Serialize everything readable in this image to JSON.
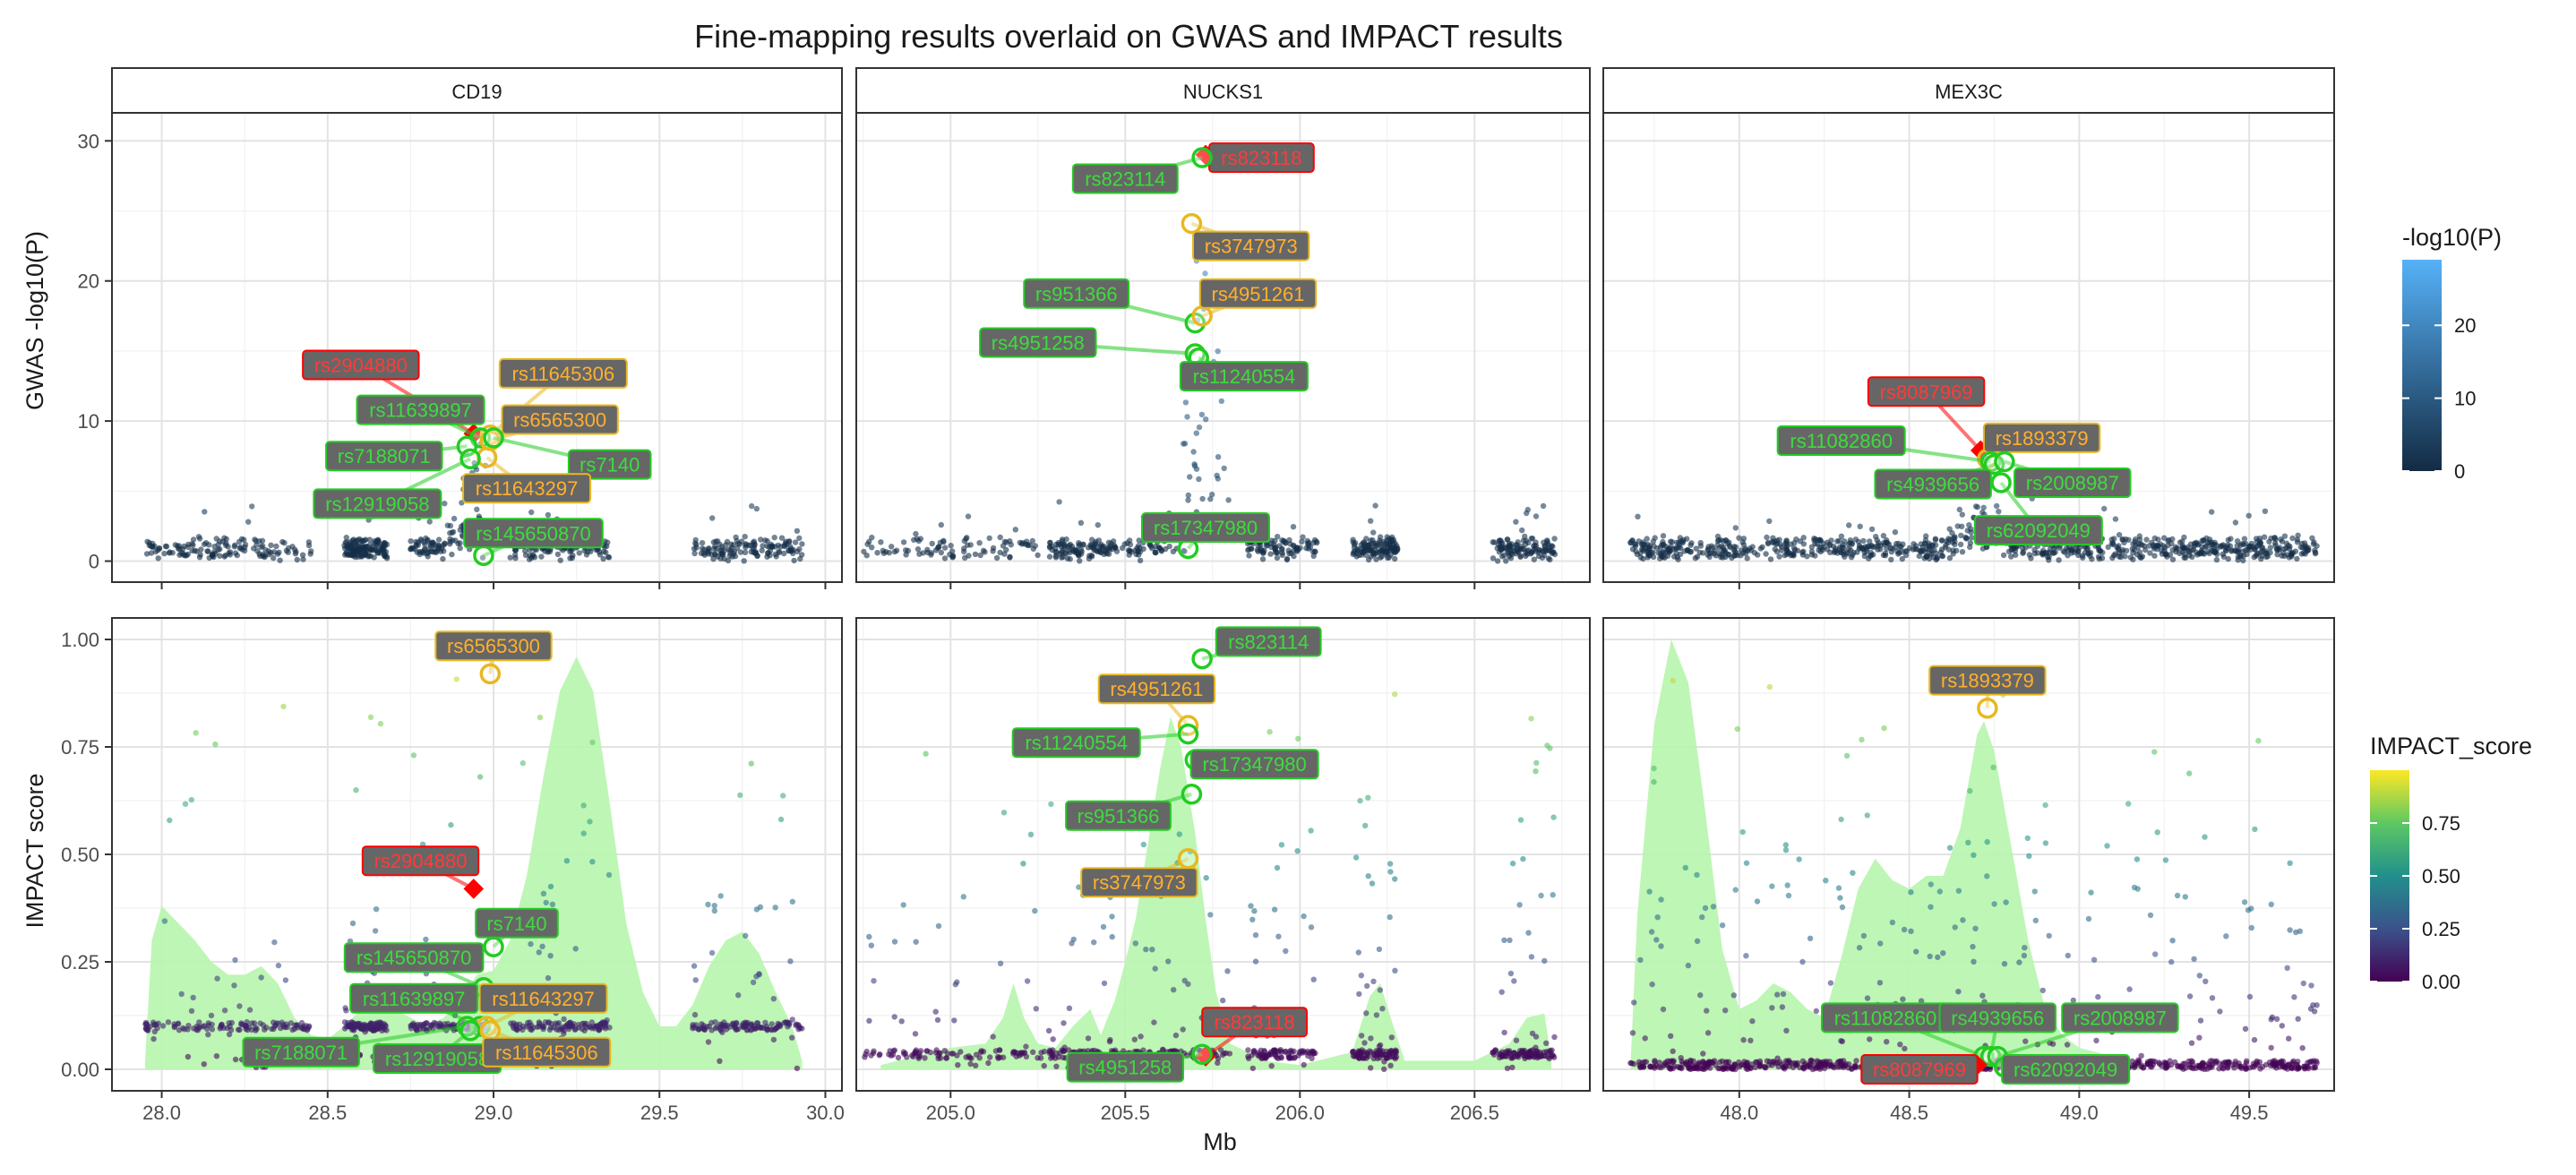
{
  "chart_data": {
    "type": "scatter",
    "title": "Fine-mapping results overlaid on GWAS and IMPACT results",
    "xlabel": "Mb",
    "rows": [
      {
        "key": "gwas",
        "ylabel": "GWAS -log10(P)",
        "ylim": [
          -1.5,
          32
        ],
        "ticks": [
          0,
          10,
          20,
          30
        ],
        "tick_labels": [
          "0",
          "10",
          "20",
          "30"
        ]
      },
      {
        "key": "impact",
        "ylabel": "IMPACT score",
        "ylim": [
          -0.05,
          1.05
        ],
        "ticks": [
          0,
          0.25,
          0.5,
          0.75,
          1.0
        ],
        "tick_labels": [
          "0.00",
          "0.25",
          "0.50",
          "0.75",
          "1.00"
        ]
      }
    ],
    "legends": [
      {
        "title": "-log10(P)",
        "min": 0,
        "max": 29,
        "ticks": [
          0,
          10,
          20
        ],
        "tick_labels": [
          "0",
          "10",
          "20"
        ],
        "colors": [
          "#132B43",
          "#56B1F7"
        ]
      },
      {
        "title": "IMPACT_score",
        "min": 0,
        "max": 1,
        "ticks": [
          0,
          0.25,
          0.5,
          0.75
        ],
        "tick_labels": [
          "0.00",
          "0.25",
          "0.50",
          "0.75"
        ],
        "colors": [
          "#440154",
          "#3B528B",
          "#21908C",
          "#5DC863",
          "#FDE725"
        ]
      }
    ],
    "colors": {
      "lead": "#ff0000",
      "credible_ring": "#22cc22",
      "alt_ring": "#e8b820",
      "density": "#b7f5ad",
      "label_fill": "#666666"
    },
    "genes": [
      {
        "name": "CD19",
        "xlim": [
          27.85,
          30.05
        ],
        "ticks": [
          28.0,
          28.5,
          29.0,
          29.5,
          30.0
        ],
        "tick_labels": [
          "28.0",
          "28.5",
          "29.0",
          "29.5",
          "30.0"
        ],
        "density": [
          [
            27.95,
            0.02
          ],
          [
            27.97,
            0.3
          ],
          [
            28.0,
            0.38
          ],
          [
            28.05,
            0.34
          ],
          [
            28.1,
            0.3
          ],
          [
            28.15,
            0.25
          ],
          [
            28.2,
            0.22
          ],
          [
            28.25,
            0.22
          ],
          [
            28.3,
            0.24
          ],
          [
            28.35,
            0.2
          ],
          [
            28.4,
            0.12
          ],
          [
            28.45,
            0.08
          ],
          [
            28.5,
            0.07
          ],
          [
            28.55,
            0.1
          ],
          [
            28.6,
            0.14
          ],
          [
            28.65,
            0.15
          ],
          [
            28.7,
            0.14
          ],
          [
            28.75,
            0.12
          ],
          [
            28.8,
            0.1
          ],
          [
            28.85,
            0.12
          ],
          [
            28.9,
            0.16
          ],
          [
            28.95,
            0.22
          ],
          [
            29.0,
            0.23
          ],
          [
            29.05,
            0.3
          ],
          [
            29.1,
            0.45
          ],
          [
            29.15,
            0.68
          ],
          [
            29.2,
            0.88
          ],
          [
            29.25,
            0.96
          ],
          [
            29.3,
            0.88
          ],
          [
            29.35,
            0.62
          ],
          [
            29.4,
            0.34
          ],
          [
            29.45,
            0.18
          ],
          [
            29.5,
            0.1
          ],
          [
            29.55,
            0.1
          ],
          [
            29.6,
            0.15
          ],
          [
            29.65,
            0.24
          ],
          [
            29.7,
            0.3
          ],
          [
            29.75,
            0.32
          ],
          [
            29.8,
            0.27
          ],
          [
            29.85,
            0.18
          ],
          [
            29.9,
            0.1
          ],
          [
            29.93,
            0.02
          ]
        ],
        "clusters": [
          [
            27.95,
            28.45
          ],
          [
            28.55,
            28.68
          ],
          [
            28.75,
            28.98
          ],
          [
            29.05,
            29.35
          ],
          [
            29.6,
            29.93
          ]
        ],
        "gwas_labels": [
          {
            "label": "rs2904880",
            "x": 28.94,
            "y": 9.1,
            "lx": 28.6,
            "ly": 14.0,
            "kind": "lead"
          },
          {
            "label": "rs11645306",
            "x": 28.99,
            "y": 9.0,
            "lx": 29.21,
            "ly": 13.4,
            "kind": "alt"
          },
          {
            "label": "rs11639897",
            "x": 28.96,
            "y": 8.8,
            "lx": 28.78,
            "ly": 10.8,
            "kind": "cs"
          },
          {
            "label": "rs6565300",
            "x": 28.99,
            "y": 8.6,
            "lx": 29.2,
            "ly": 10.1,
            "kind": "alt"
          },
          {
            "label": "rs7188071",
            "x": 28.92,
            "y": 8.2,
            "lx": 28.67,
            "ly": 7.5,
            "kind": "cs"
          },
          {
            "label": "rs7140",
            "x": 29.0,
            "y": 8.8,
            "lx": 29.35,
            "ly": 6.9,
            "kind": "cs"
          },
          {
            "label": "rs11643297",
            "x": 28.98,
            "y": 7.4,
            "lx": 29.1,
            "ly": 5.2,
            "kind": "alt"
          },
          {
            "label": "rs12919058",
            "x": 28.93,
            "y": 7.3,
            "lx": 28.65,
            "ly": 4.1,
            "kind": "cs"
          },
          {
            "label": "rs145650870",
            "x": 28.97,
            "y": 0.4,
            "lx": 29.12,
            "ly": 2.0,
            "kind": "cs"
          }
        ],
        "impact_labels": [
          {
            "label": "rs6565300",
            "x": 28.99,
            "y": 0.92,
            "lx": 29.0,
            "ly": 0.985,
            "kind": "alt"
          },
          {
            "label": "rs2904880",
            "x": 28.94,
            "y": 0.42,
            "lx": 28.78,
            "ly": 0.485,
            "kind": "lead"
          },
          {
            "label": "rs7140",
            "x": 29.0,
            "y": 0.285,
            "lx": 29.07,
            "ly": 0.34,
            "kind": "cs"
          },
          {
            "label": "rs145650870",
            "x": 28.97,
            "y": 0.19,
            "lx": 28.76,
            "ly": 0.26,
            "kind": "cs"
          },
          {
            "label": "rs11639897",
            "x": 28.96,
            "y": 0.1,
            "lx": 28.76,
            "ly": 0.165,
            "kind": "cs"
          },
          {
            "label": "rs11643297",
            "x": 28.98,
            "y": 0.1,
            "lx": 29.15,
            "ly": 0.165,
            "kind": "alt"
          },
          {
            "label": "rs7188071",
            "x": 28.92,
            "y": 0.1,
            "lx": 28.42,
            "ly": 0.04,
            "kind": "cs"
          },
          {
            "label": "rs12919058",
            "x": 28.93,
            "y": 0.09,
            "lx": 28.83,
            "ly": 0.025,
            "kind": "cs"
          },
          {
            "label": "rs11645306",
            "x": 28.99,
            "y": 0.09,
            "lx": 29.16,
            "ly": 0.04,
            "kind": "alt"
          }
        ]
      },
      {
        "name": "NUCKS1",
        "xlim": [
          204.73,
          206.83
        ],
        "ticks": [
          205.0,
          205.5,
          206.0,
          206.5
        ],
        "tick_labels": [
          "205.0",
          "205.5",
          "206.0",
          "206.5"
        ],
        "density": [
          [
            204.8,
            0.01
          ],
          [
            204.9,
            0.03
          ],
          [
            205.0,
            0.05
          ],
          [
            205.1,
            0.06
          ],
          [
            205.15,
            0.12
          ],
          [
            205.18,
            0.2
          ],
          [
            205.21,
            0.12
          ],
          [
            205.25,
            0.06
          ],
          [
            205.3,
            0.05
          ],
          [
            205.35,
            0.1
          ],
          [
            205.4,
            0.14
          ],
          [
            205.43,
            0.08
          ],
          [
            205.47,
            0.16
          ],
          [
            205.5,
            0.25
          ],
          [
            205.53,
            0.35
          ],
          [
            205.56,
            0.5
          ],
          [
            205.6,
            0.7
          ],
          [
            205.63,
            0.82
          ],
          [
            205.66,
            0.75
          ],
          [
            205.7,
            0.55
          ],
          [
            205.73,
            0.35
          ],
          [
            205.76,
            0.18
          ],
          [
            205.8,
            0.06
          ],
          [
            205.9,
            0.02
          ],
          [
            206.0,
            0.01
          ],
          [
            206.15,
            0.04
          ],
          [
            206.2,
            0.17
          ],
          [
            206.23,
            0.2
          ],
          [
            206.26,
            0.12
          ],
          [
            206.3,
            0.02
          ],
          [
            206.5,
            0.02
          ],
          [
            206.6,
            0.06
          ],
          [
            206.65,
            0.12
          ],
          [
            206.7,
            0.13
          ],
          [
            206.72,
            0.02
          ]
        ],
        "clusters": [
          [
            204.75,
            205.28
          ],
          [
            205.28,
            205.48
          ],
          [
            205.48,
            205.8
          ],
          [
            205.85,
            206.05
          ],
          [
            206.15,
            206.28
          ],
          [
            206.55,
            206.73
          ]
        ],
        "gwas_labels": [
          {
            "label": "rs823118",
            "x": 205.73,
            "y": 29.0,
            "lx": 205.89,
            "ly": 28.8,
            "kind": "lead"
          },
          {
            "label": "rs823114",
            "x": 205.72,
            "y": 28.8,
            "lx": 205.5,
            "ly": 27.3,
            "kind": "cs"
          },
          {
            "label": "rs3747973",
            "x": 205.69,
            "y": 24.1,
            "lx": 205.86,
            "ly": 22.5,
            "kind": "alt"
          },
          {
            "label": "rs951366",
            "x": 205.7,
            "y": 17.0,
            "lx": 205.36,
            "ly": 19.1,
            "kind": "cs"
          },
          {
            "label": "rs4951261",
            "x": 205.72,
            "y": 17.5,
            "lx": 205.88,
            "ly": 19.1,
            "kind": "alt"
          },
          {
            "label": "rs4951258",
            "x": 205.7,
            "y": 14.8,
            "lx": 205.25,
            "ly": 15.6,
            "kind": "cs"
          },
          {
            "label": "rs11240554",
            "x": 205.71,
            "y": 14.5,
            "lx": 205.84,
            "ly": 13.2,
            "kind": "cs"
          },
          {
            "label": "rs17347980",
            "x": 205.68,
            "y": 0.9,
            "lx": 205.73,
            "ly": 2.4,
            "kind": "cs"
          }
        ],
        "impact_labels": [
          {
            "label": "rs823114",
            "x": 205.72,
            "y": 0.955,
            "lx": 205.91,
            "ly": 0.995,
            "kind": "cs"
          },
          {
            "label": "rs4951261",
            "x": 205.68,
            "y": 0.8,
            "lx": 205.59,
            "ly": 0.885,
            "kind": "alt"
          },
          {
            "label": "rs11240554",
            "x": 205.68,
            "y": 0.78,
            "lx": 205.36,
            "ly": 0.76,
            "kind": "cs"
          },
          {
            "label": "rs17347980",
            "x": 205.7,
            "y": 0.72,
            "lx": 205.87,
            "ly": 0.71,
            "kind": "cs"
          },
          {
            "label": "rs951366",
            "x": 205.69,
            "y": 0.64,
            "lx": 205.48,
            "ly": 0.59,
            "kind": "cs"
          },
          {
            "label": "rs3747973",
            "x": 205.68,
            "y": 0.49,
            "lx": 205.54,
            "ly": 0.435,
            "kind": "alt"
          },
          {
            "label": "rs823118",
            "x": 205.73,
            "y": 0.03,
            "lx": 205.87,
            "ly": 0.11,
            "kind": "lead"
          },
          {
            "label": "rs4951258",
            "x": 205.72,
            "y": 0.035,
            "lx": 205.5,
            "ly": 0.005,
            "kind": "cs"
          }
        ]
      },
      {
        "name": "MEX3C",
        "xlim": [
          47.6,
          49.75
        ],
        "ticks": [
          48.0,
          48.5,
          49.0,
          49.5
        ],
        "tick_labels": [
          "48.0",
          "48.5",
          "49.0",
          "49.5"
        ],
        "density": [
          [
            47.68,
            0.01
          ],
          [
            47.7,
            0.36
          ],
          [
            47.75,
            0.8
          ],
          [
            47.8,
            1.0
          ],
          [
            47.85,
            0.9
          ],
          [
            47.9,
            0.6
          ],
          [
            47.95,
            0.28
          ],
          [
            48.0,
            0.14
          ],
          [
            48.05,
            0.16
          ],
          [
            48.1,
            0.2
          ],
          [
            48.15,
            0.18
          ],
          [
            48.2,
            0.14
          ],
          [
            48.25,
            0.12
          ],
          [
            48.3,
            0.26
          ],
          [
            48.35,
            0.42
          ],
          [
            48.4,
            0.49
          ],
          [
            48.45,
            0.44
          ],
          [
            48.5,
            0.42
          ],
          [
            48.55,
            0.45
          ],
          [
            48.6,
            0.45
          ],
          [
            48.65,
            0.56
          ],
          [
            48.7,
            0.78
          ],
          [
            48.72,
            0.81
          ],
          [
            48.75,
            0.74
          ],
          [
            48.8,
            0.52
          ],
          [
            48.85,
            0.3
          ],
          [
            48.9,
            0.14
          ],
          [
            48.95,
            0.08
          ],
          [
            49.0,
            0.05
          ],
          [
            49.1,
            0.03
          ],
          [
            49.18,
            0.01
          ]
        ],
        "clusters": [
          [
            47.68,
            49.7
          ]
        ],
        "gwas_labels": [
          {
            "label": "rs8087969",
            "x": 48.71,
            "y": 7.9,
            "lx": 48.55,
            "ly": 12.1,
            "kind": "lead"
          },
          {
            "label": "rs1893379",
            "x": 48.73,
            "y": 7.3,
            "lx": 48.89,
            "ly": 8.8,
            "kind": "alt"
          },
          {
            "label": "rs11082860",
            "x": 48.74,
            "y": 7.1,
            "lx": 48.3,
            "ly": 8.6,
            "kind": "cs"
          },
          {
            "label": "rs4939656",
            "x": 48.75,
            "y": 6.9,
            "lx": 48.57,
            "ly": 5.5,
            "kind": "cs"
          },
          {
            "label": "rs2008987",
            "x": 48.78,
            "y": 7.1,
            "lx": 48.98,
            "ly": 5.6,
            "kind": "cs"
          },
          {
            "label": "rs62092049",
            "x": 48.77,
            "y": 5.6,
            "lx": 48.88,
            "ly": 2.2,
            "kind": "cs"
          }
        ],
        "impact_labels": [
          {
            "label": "rs1893379",
            "x": 48.73,
            "y": 0.84,
            "lx": 48.73,
            "ly": 0.905,
            "kind": "alt"
          },
          {
            "label": "rs11082860",
            "x": 48.72,
            "y": 0.03,
            "lx": 48.43,
            "ly": 0.12,
            "kind": "cs"
          },
          {
            "label": "rs4939656",
            "x": 48.74,
            "y": 0.03,
            "lx": 48.76,
            "ly": 0.12,
            "kind": "cs"
          },
          {
            "label": "rs2008987",
            "x": 48.76,
            "y": 0.03,
            "lx": 49.12,
            "ly": 0.12,
            "kind": "cs"
          },
          {
            "label": "rs8087969",
            "x": 48.7,
            "y": 0.01,
            "lx": 48.53,
            "ly": 0.0,
            "kind": "lead"
          },
          {
            "label": "rs62092049",
            "x": 48.78,
            "y": 0.005,
            "lx": 48.96,
            "ly": 0.0,
            "kind": "cs"
          }
        ]
      }
    ]
  }
}
